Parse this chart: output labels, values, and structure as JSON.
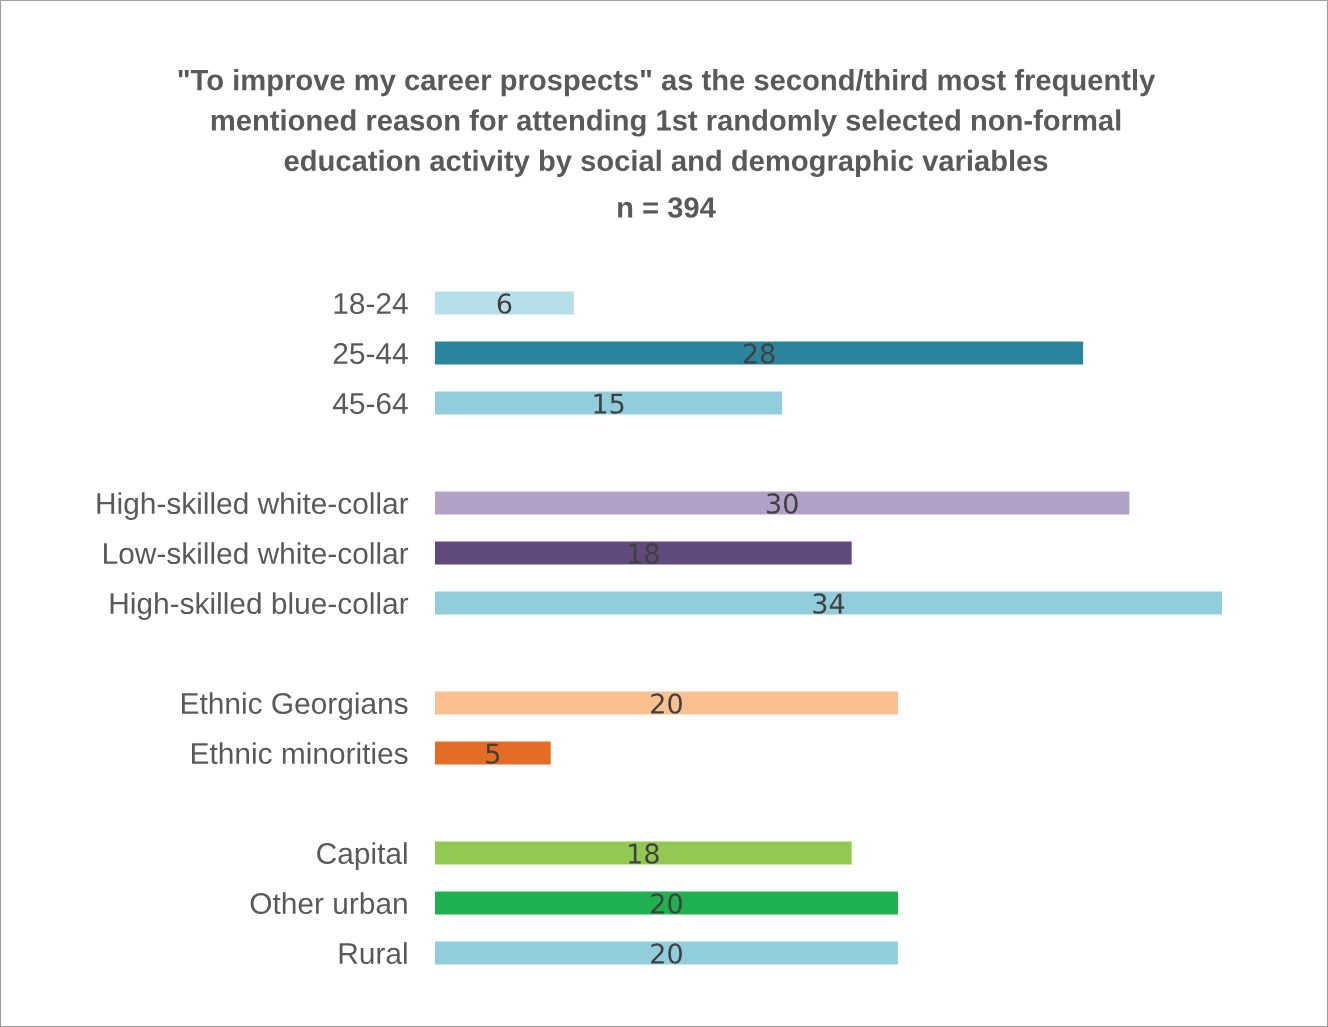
{
  "chart_data": {
    "type": "bar",
    "orientation": "horizontal",
    "title": "\"To improve my career prospects\" as the second/third most frequently\nmentioned reason for attending 1st randomly selected non-formal\neducation activity by social and demographic variables",
    "subtitle": "n = 394",
    "categories": [
      "18-24",
      "25-44",
      "45-64",
      null,
      "High-skilled white-collar",
      "Low-skilled white-collar",
      "High-skilled blue-collar",
      null,
      "Ethnic Georgians",
      "Ethnic minorities",
      null,
      "Capital",
      "Other urban",
      "Rural"
    ],
    "values": [
      6,
      28,
      15,
      null,
      30,
      18,
      34,
      null,
      20,
      5,
      null,
      18,
      20,
      20
    ],
    "colors": [
      "#b7dfea",
      "#2b849c",
      "#92cddc",
      null,
      "#b2a1c7",
      "#604a7b",
      "#92cddc",
      null,
      "#fac090",
      "#e46c24",
      null,
      "#92c953",
      "#1fb04f",
      "#92cddc"
    ],
    "data_labels": true,
    "tick_labels": "y"
  }
}
